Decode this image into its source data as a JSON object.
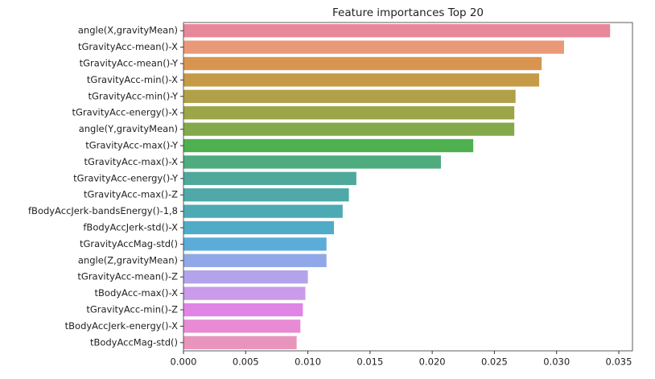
{
  "chart_data": {
    "type": "barh",
    "title": "Feature importances Top 20",
    "categories": [
      "angle(X,gravityMean)",
      "tGravityAcc-mean()-X",
      "tGravityAcc-mean()-Y",
      "tGravityAcc-min()-X",
      "tGravityAcc-min()-Y",
      "tGravityAcc-energy()-X",
      "angle(Y,gravityMean)",
      "tGravityAcc-max()-Y",
      "tGravityAcc-max()-X",
      "tGravityAcc-energy()-Y",
      "tGravityAcc-max()-Z",
      "fBodyAccJerk-bandsEnergy()-1,8",
      "fBodyAccJerk-std()-X",
      "tGravityAccMag-std()",
      "angle(Z,gravityMean)",
      "tGravityAcc-mean()-Z",
      "tBodyAcc-max()-X",
      "tGravityAcc-min()-Z",
      "tBodyAccJerk-energy()-X",
      "tBodyAccMag-std()"
    ],
    "values": [
      0.0343,
      0.0306,
      0.0288,
      0.0286,
      0.0267,
      0.0266,
      0.0266,
      0.0233,
      0.0207,
      0.0139,
      0.0133,
      0.0128,
      0.0121,
      0.0115,
      0.0115,
      0.01,
      0.0098,
      0.0096,
      0.0094,
      0.0091
    ],
    "colors": [
      "#e8879a",
      "#e99878",
      "#d9954f",
      "#c59b48",
      "#b0a048",
      "#9ca548",
      "#84a94b",
      "#4eb04e",
      "#4eac7f",
      "#4ea99a",
      "#4ea9a8",
      "#4daab4",
      "#4fabc6",
      "#5cacd9",
      "#90a8e8",
      "#b2a3ea",
      "#c99bea",
      "#e085e5",
      "#e88bd4",
      "#e994bd"
    ],
    "xlim": [
      0,
      0.0361
    ],
    "xticks": [
      {
        "value": 0,
        "label": "0.000"
      },
      {
        "value": 0.005,
        "label": "0.005"
      },
      {
        "value": 0.01,
        "label": "0.010"
      },
      {
        "value": 0.015,
        "label": "0.015"
      },
      {
        "value": 0.02,
        "label": "0.020"
      },
      {
        "value": 0.025,
        "label": "0.025"
      },
      {
        "value": 0.03,
        "label": "0.030"
      },
      {
        "value": 0.035,
        "label": "0.035"
      }
    ]
  }
}
